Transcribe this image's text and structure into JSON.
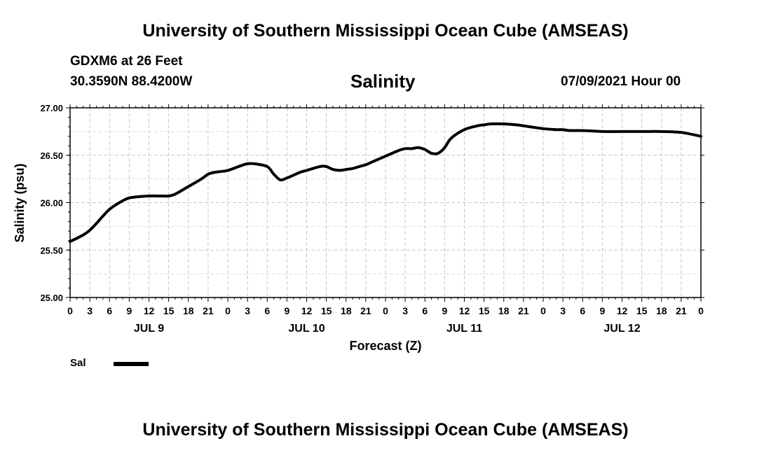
{
  "header": {
    "title": "University of Southern Mississippi Ocean Cube (AMSEAS)",
    "station": "GDXM6 at 26 Feet",
    "coords": "30.3590N  88.4200W",
    "parameter": "Salinity",
    "datetime": "07/09/2021 Hour 00"
  },
  "footer": {
    "title": "University of Southern Mississippi Ocean Cube (AMSEAS)"
  },
  "legend": {
    "label": "Sal"
  },
  "chart_data": {
    "type": "line",
    "title": "Salinity",
    "xlabel": "Forecast (Z)",
    "ylabel": "Salinity (psu)",
    "ylim": [
      25.0,
      27.0
    ],
    "xlim": [
      0,
      96
    ],
    "yticks": [
      "25.00",
      "25.50",
      "26.00",
      "26.50",
      "27.00"
    ],
    "ytick_values": [
      25.0,
      25.5,
      26.0,
      26.5,
      27.0
    ],
    "xtick_labels": [
      "0",
      "3",
      "6",
      "9",
      "12",
      "15",
      "18",
      "21",
      "0",
      "3",
      "6",
      "9",
      "12",
      "15",
      "18",
      "21",
      "0",
      "3",
      "6",
      "9",
      "12",
      "15",
      "18",
      "21",
      "0",
      "3",
      "6",
      "9",
      "12",
      "15",
      "18",
      "21",
      "0"
    ],
    "day_labels": [
      {
        "label": "JUL 9",
        "hour": 12
      },
      {
        "label": "JUL 10",
        "hour": 36
      },
      {
        "label": "JUL 11",
        "hour": 60
      },
      {
        "label": "JUL 12",
        "hour": 84
      }
    ],
    "grid": true,
    "series": [
      {
        "name": "Sal",
        "color": "#000000",
        "x": [
          0,
          2,
          3,
          4,
          6,
          8,
          9,
          10,
          12,
          14,
          15,
          16,
          18,
          20,
          21,
          22,
          24,
          26,
          27,
          28,
          30,
          31,
          32,
          33,
          34,
          35,
          36,
          38,
          39,
          40,
          41,
          42,
          43,
          44,
          45,
          46,
          48,
          50,
          51,
          52,
          53,
          54,
          55,
          56,
          57,
          58,
          60,
          62,
          63,
          64,
          66,
          68,
          69,
          70,
          72,
          74,
          75,
          76,
          78,
          81,
          84,
          87,
          90,
          93,
          96
        ],
        "y": [
          25.59,
          25.66,
          25.71,
          25.78,
          25.93,
          26.02,
          26.05,
          26.06,
          26.07,
          26.07,
          26.07,
          26.09,
          26.17,
          26.25,
          26.3,
          26.32,
          26.34,
          26.39,
          26.41,
          26.41,
          26.38,
          26.3,
          26.24,
          26.26,
          26.29,
          26.32,
          26.34,
          26.38,
          26.38,
          26.35,
          26.34,
          26.35,
          26.36,
          26.38,
          26.4,
          26.43,
          26.49,
          26.55,
          26.57,
          26.57,
          26.58,
          26.56,
          26.52,
          26.52,
          26.58,
          26.68,
          26.77,
          26.81,
          26.82,
          26.83,
          26.83,
          26.82,
          26.81,
          26.8,
          26.78,
          26.77,
          26.77,
          26.76,
          26.76,
          26.75,
          26.75,
          26.75,
          26.75,
          26.74,
          26.7
        ]
      }
    ]
  }
}
